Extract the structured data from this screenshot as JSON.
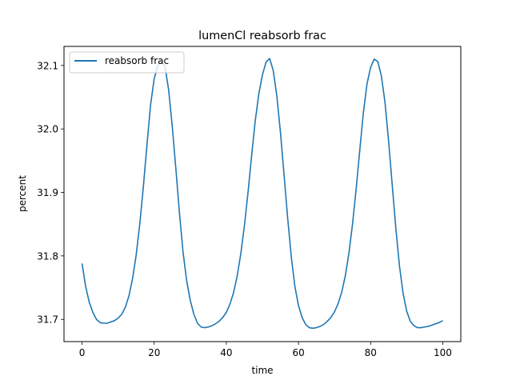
{
  "chart_data": {
    "type": "line",
    "title": "lumenCl reabsorb frac",
    "xlabel": "time",
    "ylabel": "percent",
    "xlim": [
      -5,
      105
    ],
    "ylim": [
      31.665,
      32.13
    ],
    "xticks": [
      0,
      20,
      40,
      60,
      80,
      100
    ],
    "xtick_labels": [
      "0",
      "20",
      "40",
      "60",
      "80",
      "100"
    ],
    "yticks": [
      31.7,
      31.8,
      31.9,
      32.0,
      32.1
    ],
    "ytick_labels": [
      "31.7",
      "31.8",
      "31.9",
      "32.0",
      "32.1"
    ],
    "grid": false,
    "legend_position": "top-left",
    "series": [
      {
        "name": "reabsorb frac",
        "color": "#1f77b4",
        "x": [
          0,
          1,
          2,
          3,
          4,
          5,
          6,
          7,
          8,
          9,
          10,
          11,
          12,
          13,
          14,
          15,
          16,
          17,
          18,
          19,
          20,
          21,
          22,
          23,
          24,
          25,
          26,
          27,
          28,
          29,
          30,
          31,
          32,
          33,
          34,
          35,
          36,
          37,
          38,
          39,
          40,
          41,
          42,
          43,
          44,
          45,
          46,
          47,
          48,
          49,
          50,
          51,
          52,
          53,
          54,
          55,
          56,
          57,
          58,
          59,
          60,
          61,
          62,
          63,
          64,
          65,
          66,
          67,
          68,
          69,
          70,
          71,
          72,
          73,
          74,
          75,
          76,
          77,
          78,
          79,
          80,
          81,
          82,
          83,
          84,
          85,
          86,
          87,
          88,
          89,
          90,
          91,
          92,
          93,
          94,
          95,
          96,
          97,
          98,
          99,
          100
        ],
        "y": [
          31.788,
          31.752,
          31.727,
          31.711,
          31.7,
          31.695,
          31.694,
          31.694,
          31.696,
          31.698,
          31.702,
          31.708,
          31.719,
          31.737,
          31.764,
          31.801,
          31.85,
          31.909,
          31.975,
          32.038,
          32.079,
          32.1,
          32.108,
          32.098,
          32.062,
          32.005,
          31.938,
          31.868,
          31.806,
          31.761,
          31.73,
          31.708,
          31.694,
          31.688,
          31.687,
          31.688,
          31.69,
          31.693,
          31.697,
          31.703,
          31.711,
          31.724,
          31.742,
          31.768,
          31.803,
          31.847,
          31.899,
          31.957,
          32.012,
          32.055,
          32.085,
          32.105,
          32.111,
          32.092,
          32.052,
          31.995,
          31.928,
          31.86,
          31.799,
          31.752,
          31.722,
          31.703,
          31.692,
          31.687,
          31.686,
          31.687,
          31.689,
          31.692,
          31.697,
          31.703,
          31.712,
          31.725,
          31.743,
          31.769,
          31.805,
          31.851,
          31.906,
          31.967,
          32.026,
          32.071,
          32.097,
          32.11,
          32.106,
          32.083,
          32.041,
          31.98,
          31.911,
          31.843,
          31.784,
          31.741,
          31.713,
          31.697,
          31.69,
          31.687,
          31.687,
          31.688,
          31.689,
          31.691,
          31.693,
          31.695,
          31.698
        ]
      }
    ]
  }
}
